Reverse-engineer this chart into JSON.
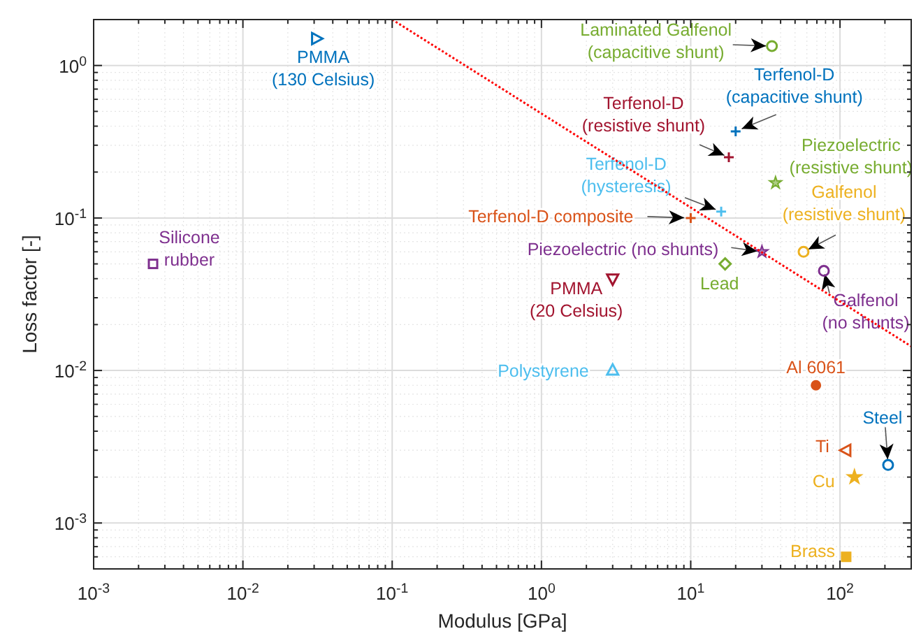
{
  "chart_data": {
    "type": "scatter",
    "xlabel": "Modulus [GPa]",
    "ylabel": "Loss factor [-]",
    "log": "xy",
    "grid": true,
    "xlim": [
      0.001,
      300
    ],
    "ylim": [
      0.0005,
      2
    ],
    "xticks": [
      {
        "value": 0.001,
        "label": "10$^{-3}$"
      },
      {
        "value": 0.01,
        "label": "10$^{-2}$"
      },
      {
        "value": 0.1,
        "label": "10$^{-1}$"
      },
      {
        "value": 1,
        "label": "10$^{0}$"
      },
      {
        "value": 10,
        "label": "10$^{1}$"
      },
      {
        "value": 100,
        "label": "10$^{2}$"
      }
    ],
    "yticks": [
      {
        "value": 0.001,
        "label": "10$^{-3}$"
      },
      {
        "value": 0.01,
        "label": "10$^{-2}$"
      },
      {
        "value": 0.1,
        "label": "10$^{-1}$"
      },
      {
        "value": 1,
        "label": "10$^{0}$"
      }
    ],
    "series": [
      {
        "name": "PMMA (130 Celsius)",
        "color": "#0072bd",
        "marker": "triangle",
        "x": [
          0.031
        ],
        "values": [
          1.5
        ]
      },
      {
        "name": "Silicone rubber",
        "color": "#7e2f8e",
        "marker": "square",
        "x": [
          0.0025
        ],
        "values": [
          0.05
        ]
      },
      {
        "name": "Laminated Galfenol (capacitive shunt)",
        "color": "#77ac30",
        "marker": "circle",
        "x": [
          35
        ],
        "values": [
          1.34
        ]
      },
      {
        "name": "Terfenol-D (capacitive shunt)",
        "color": "#0072bd",
        "marker": "cross",
        "x": [
          20
        ],
        "values": [
          0.37
        ]
      },
      {
        "name": "Terfenol-D (resistive shunt)",
        "color": "#a2142f",
        "marker": "cross",
        "x": [
          18
        ],
        "values": [
          0.25
        ]
      },
      {
        "name": "Piezoelectric (resistive shunt)",
        "color": "#77ac30",
        "marker": "star",
        "x": [
          37
        ],
        "values": [
          0.17
        ]
      },
      {
        "name": "Terfenol-D (hysteresis)",
        "color": "#4dbeee",
        "marker": "cross",
        "x": [
          16
        ],
        "values": [
          0.11
        ]
      },
      {
        "name": "Terfenol-D composite",
        "color": "#d95319",
        "marker": "cross",
        "x": [
          10
        ],
        "values": [
          0.1
        ]
      },
      {
        "name": "Galfenol (resistive shunt)",
        "color": "#edb120",
        "marker": "circle",
        "x": [
          57
        ],
        "values": [
          0.06
        ]
      },
      {
        "name": "Piezoelectric (no shunts)",
        "color": "#7e2f8e",
        "marker": "star",
        "x": [
          30
        ],
        "values": [
          0.06
        ]
      },
      {
        "name": "Lead",
        "color": "#77ac30",
        "marker": "diamond",
        "x": [
          17
        ],
        "values": [
          0.05
        ]
      },
      {
        "name": "Galfenol (no shunts)",
        "color": "#7e2f8e",
        "marker": "circle",
        "x": [
          78
        ],
        "values": [
          0.045
        ]
      },
      {
        "name": "PMMA (20 Celsius)",
        "color": "#a2142f",
        "marker": "triangle",
        "x": [
          3
        ],
        "values": [
          0.04
        ]
      },
      {
        "name": "Polystyrene",
        "color": "#4dbeee",
        "marker": "triangle",
        "x": [
          3
        ],
        "values": [
          0.01
        ]
      },
      {
        "name": "Al 6061",
        "color": "#d95319",
        "marker": "circle",
        "x": [
          69
        ],
        "values": [
          0.008
        ]
      },
      {
        "name": "Steel",
        "color": "#0072bd",
        "marker": "circle",
        "x": [
          210
        ],
        "values": [
          0.0024
        ]
      },
      {
        "name": "Ti",
        "color": "#d95319",
        "marker": "triangle",
        "x": [
          110
        ],
        "values": [
          0.003
        ]
      },
      {
        "name": "Cu",
        "color": "#edb120",
        "marker": "star",
        "x": [
          125
        ],
        "values": [
          0.002
        ]
      },
      {
        "name": "Brass",
        "color": "#edb120",
        "marker": "square",
        "x": [
          110
        ],
        "values": [
          0.0006
        ]
      },
      {
        "type": "line",
        "color": "#ff0000",
        "marker": "none",
        "line_style": "dotted",
        "x": [
          0.1,
          300
        ],
        "values": [
          2,
          0.0144
        ]
      }
    ]
  }
}
